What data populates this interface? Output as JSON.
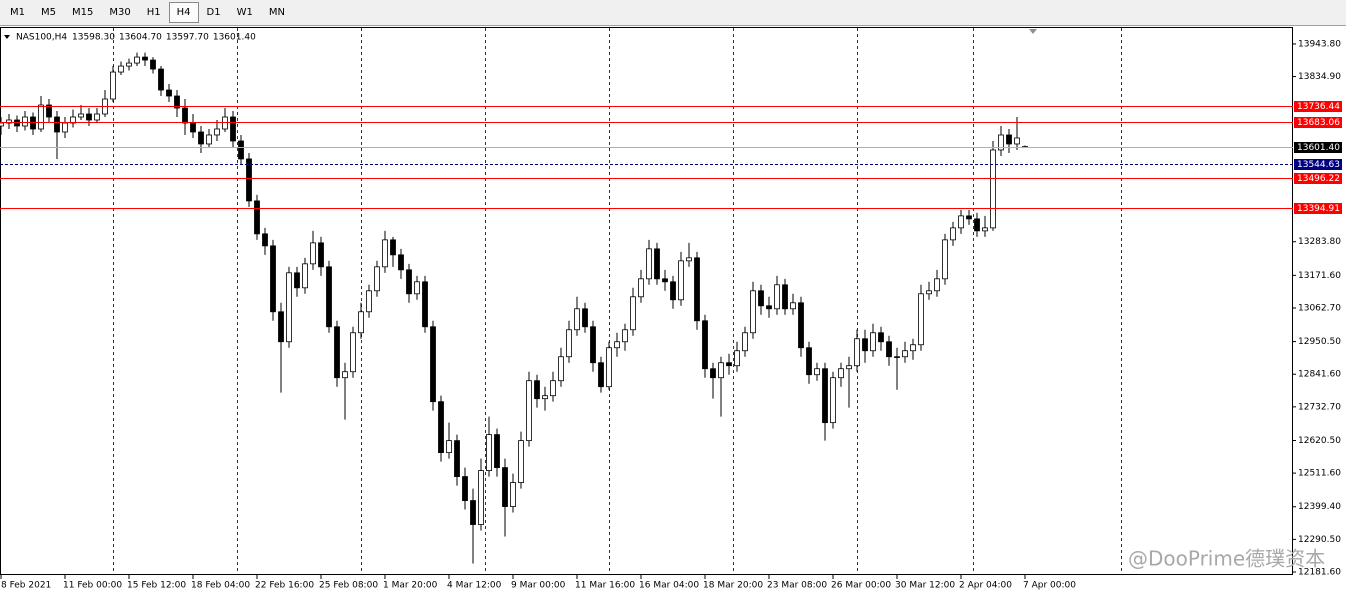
{
  "toolbar": {
    "timeframes": [
      "M1",
      "M5",
      "M15",
      "M30",
      "H1",
      "H4",
      "D1",
      "W1",
      "MN"
    ],
    "active": "H4"
  },
  "chart_data": {
    "type": "candlestick",
    "symbol": "NAS100,H4",
    "ohlc_text": [
      "13598.30",
      "13604.70",
      "13597.70",
      "13601.40"
    ],
    "watermark": "@DooPrime德璞资本",
    "up_color": "#ffffff",
    "down_color": "#000000",
    "outline_color": "#000000",
    "ylim": [
      12171.6,
      13997
    ],
    "yticks": [
      {
        "value": 13943.8,
        "label": "13943.80"
      },
      {
        "value": 13834.9,
        "label": "13834.90"
      },
      {
        "value": 13283.8,
        "label": "13283.80"
      },
      {
        "value": 13171.6,
        "label": "13171.60"
      },
      {
        "value": 13062.7,
        "label": "13062.70"
      },
      {
        "value": 12950.5,
        "label": "12950.50"
      },
      {
        "value": 12841.6,
        "label": "12841.60"
      },
      {
        "value": 12732.7,
        "label": "12732.70"
      },
      {
        "value": 12620.5,
        "label": "12620.50"
      },
      {
        "value": 12511.6,
        "label": "12511.60"
      },
      {
        "value": 12399.4,
        "label": "12399.40"
      },
      {
        "value": 12290.5,
        "label": "12290.50"
      },
      {
        "value": 12181.6,
        "label": "12181.60"
      }
    ],
    "hlines": [
      {
        "value": 13736.44,
        "color": "#ff0000",
        "label_bg": "#ff0000",
        "style": "solid"
      },
      {
        "value": 13683.06,
        "color": "#ff0000",
        "label_bg": "#ff0000",
        "style": "solid"
      },
      {
        "value": 13601.4,
        "label": "13601.40",
        "color": "#b0b0b0",
        "label_bg": "#000000",
        "style": "solid"
      },
      {
        "value": 13544.63,
        "color": "#000080",
        "label_bg": "#000080",
        "style": "dashed"
      },
      {
        "value": 13496.22,
        "color": "#ff0000",
        "label_bg": "#ff0000",
        "style": "solid"
      },
      {
        "value": 13394.91,
        "color": "#ff0000",
        "label_bg": "#ff0000",
        "style": "solid"
      }
    ],
    "categories": [
      "8 Feb 2021",
      null,
      null,
      null,
      null,
      null,
      null,
      null,
      "11 Feb 00:00",
      null,
      null,
      null,
      null,
      null,
      null,
      null,
      "15 Feb 12:00",
      null,
      null,
      null,
      null,
      null,
      null,
      null,
      "18 Feb 04:00",
      null,
      null,
      null,
      null,
      null,
      null,
      null,
      "22 Feb 16:00",
      null,
      null,
      null,
      null,
      null,
      null,
      null,
      "25 Feb 08:00",
      null,
      null,
      null,
      null,
      null,
      null,
      null,
      "1 Mar 20:00",
      null,
      null,
      null,
      null,
      null,
      null,
      null,
      "4 Mar 12:00",
      null,
      null,
      null,
      null,
      null,
      null,
      null,
      "9 Mar 00:00",
      null,
      null,
      null,
      null,
      null,
      null,
      null,
      "11 Mar 16:00",
      null,
      null,
      null,
      null,
      null,
      null,
      null,
      "16 Mar 04:00",
      null,
      null,
      null,
      null,
      null,
      null,
      null,
      "18 Mar 20:00",
      null,
      null,
      null,
      null,
      null,
      null,
      null,
      "23 Mar 08:00",
      null,
      null,
      null,
      null,
      null,
      null,
      null,
      "26 Mar 00:00",
      null,
      null,
      null,
      null,
      null,
      null,
      null,
      "30 Mar 12:00",
      null,
      null,
      null,
      null,
      null,
      null,
      null,
      "2 Apr 04:00",
      null,
      null,
      null,
      null,
      null,
      null,
      null,
      "7 Apr 00:00"
    ],
    "candles": [
      [
        13670,
        13700,
        13640,
        13680
      ],
      [
        13680,
        13710,
        13660,
        13690
      ],
      [
        13690,
        13705,
        13650,
        13670
      ],
      [
        13670,
        13720,
        13655,
        13700
      ],
      [
        13700,
        13715,
        13640,
        13660
      ],
      [
        13660,
        13770,
        13650,
        13740
      ],
      [
        13740,
        13760,
        13680,
        13700
      ],
      [
        13700,
        13720,
        13560,
        13650
      ],
      [
        13650,
        13700,
        13630,
        13680
      ],
      [
        13680,
        13725,
        13665,
        13700
      ],
      [
        13700,
        13740,
        13690,
        13710
      ],
      [
        13710,
        13730,
        13670,
        13690
      ],
      [
        13690,
        13730,
        13680,
        13710
      ],
      [
        13710,
        13790,
        13700,
        13760
      ],
      [
        13760,
        13870,
        13750,
        13850
      ],
      [
        13850,
        13885,
        13840,
        13870
      ],
      [
        13870,
        13895,
        13855,
        13880
      ],
      [
        13880,
        13915,
        13870,
        13900
      ],
      [
        13900,
        13915,
        13870,
        13890
      ],
      [
        13890,
        13900,
        13845,
        13860
      ],
      [
        13860,
        13870,
        13770,
        13790
      ],
      [
        13790,
        13810,
        13750,
        13770
      ],
      [
        13770,
        13790,
        13700,
        13730
      ],
      [
        13730,
        13760,
        13640,
        13680
      ],
      [
        13680,
        13710,
        13630,
        13650
      ],
      [
        13650,
        13670,
        13580,
        13610
      ],
      [
        13610,
        13660,
        13600,
        13640
      ],
      [
        13640,
        13690,
        13620,
        13660
      ],
      [
        13660,
        13730,
        13650,
        13700
      ],
      [
        13700,
        13720,
        13600,
        13620
      ],
      [
        13620,
        13640,
        13540,
        13560
      ],
      [
        13560,
        13580,
        13400,
        13420
      ],
      [
        13420,
        13440,
        13290,
        13310
      ],
      [
        13310,
        13330,
        13240,
        13270
      ],
      [
        13270,
        13290,
        13020,
        13050
      ],
      [
        13050,
        13080,
        12780,
        12950
      ],
      [
        12950,
        13200,
        12930,
        13180
      ],
      [
        13180,
        13200,
        13100,
        13130
      ],
      [
        13130,
        13230,
        13110,
        13210
      ],
      [
        13210,
        13320,
        13190,
        13280
      ],
      [
        13280,
        13300,
        13170,
        13200
      ],
      [
        13200,
        13220,
        12980,
        13000
      ],
      [
        13000,
        13020,
        12800,
        12830
      ],
      [
        12830,
        12880,
        12690,
        12850
      ],
      [
        12850,
        13000,
        12830,
        12980
      ],
      [
        12980,
        13080,
        12960,
        13050
      ],
      [
        13050,
        13140,
        13030,
        13120
      ],
      [
        13120,
        13220,
        13100,
        13200
      ],
      [
        13200,
        13320,
        13180,
        13290
      ],
      [
        13290,
        13300,
        13200,
        13240
      ],
      [
        13240,
        13260,
        13160,
        13190
      ],
      [
        13190,
        13210,
        13080,
        13110
      ],
      [
        13110,
        13170,
        13090,
        13150
      ],
      [
        13150,
        13170,
        12980,
        13000
      ],
      [
        13000,
        13020,
        12720,
        12750
      ],
      [
        12750,
        12770,
        12550,
        12580
      ],
      [
        12580,
        12680,
        12560,
        12620
      ],
      [
        12620,
        12640,
        12470,
        12500
      ],
      [
        12500,
        12530,
        12390,
        12420
      ],
      [
        12420,
        12460,
        12210,
        12340
      ],
      [
        12340,
        12560,
        12320,
        12520
      ],
      [
        12520,
        12700,
        12500,
        12640
      ],
      [
        12640,
        12660,
        12500,
        12530
      ],
      [
        12530,
        12560,
        12300,
        12400
      ],
      [
        12400,
        12510,
        12380,
        12480
      ],
      [
        12480,
        12650,
        12460,
        12620
      ],
      [
        12620,
        12850,
        12600,
        12820
      ],
      [
        12820,
        12840,
        12730,
        12760
      ],
      [
        12760,
        12800,
        12720,
        12770
      ],
      [
        12770,
        12850,
        12750,
        12820
      ],
      [
        12820,
        12930,
        12800,
        12900
      ],
      [
        12900,
        13020,
        12880,
        12990
      ],
      [
        12990,
        13100,
        12970,
        13060
      ],
      [
        13060,
        13080,
        12980,
        13000
      ],
      [
        13000,
        13020,
        12850,
        12880
      ],
      [
        12880,
        12900,
        12780,
        12800
      ],
      [
        12800,
        12950,
        12790,
        12930
      ],
      [
        12930,
        12980,
        12900,
        12950
      ],
      [
        12950,
        13010,
        12920,
        12990
      ],
      [
        12990,
        13130,
        12970,
        13100
      ],
      [
        13100,
        13190,
        13080,
        13160
      ],
      [
        13160,
        13290,
        13140,
        13260
      ],
      [
        13260,
        13280,
        13140,
        13160
      ],
      [
        13160,
        13190,
        13120,
        13150
      ],
      [
        13150,
        13170,
        13060,
        13090
      ],
      [
        13090,
        13250,
        13070,
        13220
      ],
      [
        13220,
        13280,
        13200,
        13230
      ],
      [
        13230,
        13250,
        12990,
        13020
      ],
      [
        13020,
        13040,
        12830,
        12860
      ],
      [
        12860,
        12880,
        12760,
        12830
      ],
      [
        12830,
        12900,
        12700,
        12880
      ],
      [
        12880,
        12910,
        12840,
        12870
      ],
      [
        12870,
        12950,
        12850,
        12920
      ],
      [
        12920,
        13000,
        12900,
        12980
      ],
      [
        12980,
        13150,
        12960,
        13120
      ],
      [
        13120,
        13140,
        13040,
        13070
      ],
      [
        13070,
        13100,
        13030,
        13060
      ],
      [
        13060,
        13170,
        13040,
        13140
      ],
      [
        13140,
        13160,
        13040,
        13060
      ],
      [
        13060,
        13110,
        13040,
        13080
      ],
      [
        13080,
        13100,
        12900,
        12930
      ],
      [
        12930,
        12950,
        12810,
        12840
      ],
      [
        12840,
        12880,
        12820,
        12860
      ],
      [
        12860,
        12880,
        12620,
        12680
      ],
      [
        12680,
        12850,
        12660,
        12830
      ],
      [
        12830,
        12880,
        12800,
        12860
      ],
      [
        12860,
        12900,
        12730,
        12870
      ],
      [
        12870,
        12990,
        12850,
        12960
      ],
      [
        12960,
        12990,
        12880,
        12920
      ],
      [
        12920,
        13010,
        12900,
        12980
      ],
      [
        12980,
        13000,
        12920,
        12950
      ],
      [
        12950,
        12970,
        12870,
        12900
      ],
      [
        12900,
        12930,
        12790,
        12900
      ],
      [
        12900,
        12950,
        12880,
        12920
      ],
      [
        12920,
        12960,
        12890,
        12940
      ],
      [
        12940,
        13140,
        12920,
        13110
      ],
      [
        13110,
        13150,
        13090,
        13120
      ],
      [
        13120,
        13190,
        13100,
        13160
      ],
      [
        13160,
        13310,
        13140,
        13290
      ],
      [
        13290,
        13350,
        13270,
        13330
      ],
      [
        13330,
        13390,
        13310,
        13370
      ],
      [
        13370,
        13390,
        13340,
        13360
      ],
      [
        13360,
        13380,
        13300,
        13320
      ],
      [
        13320,
        13370,
        13300,
        13330
      ],
      [
        13330,
        13620,
        13320,
        13590
      ],
      [
        13590,
        13670,
        13570,
        13640
      ],
      [
        13640,
        13660,
        13580,
        13610
      ],
      [
        13610,
        13700,
        13590,
        13630
      ],
      [
        13598.3,
        13604.7,
        13597.7,
        13601.4
      ]
    ]
  }
}
